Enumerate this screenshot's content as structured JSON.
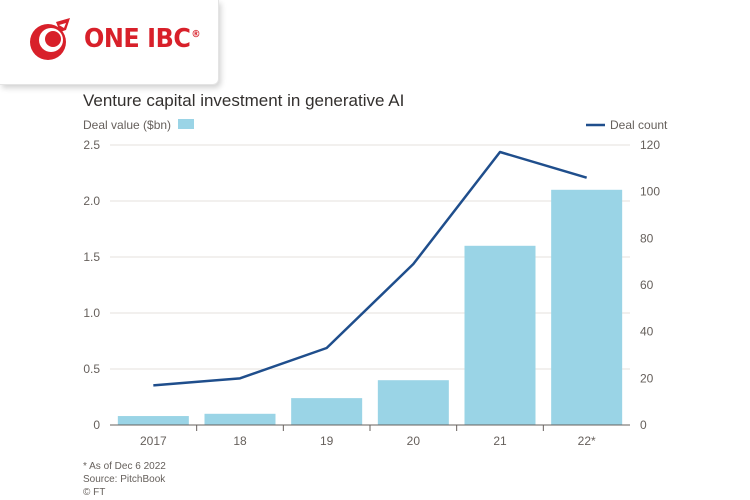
{
  "brand": {
    "name": "ONE IBC",
    "registered_mark": "®",
    "accent_color": "#d8202a"
  },
  "chart_data": {
    "type": "bar",
    "title": "Venture capital investment in generative AI",
    "categories": [
      "2017",
      "18",
      "19",
      "20",
      "21",
      "22*"
    ],
    "series": [
      {
        "name": "Deal value ($bn)",
        "type": "bar",
        "axis": "left",
        "color": "#9ad4e6",
        "values": [
          0.08,
          0.1,
          0.24,
          0.4,
          1.6,
          2.1
        ]
      },
      {
        "name": "Deal count",
        "type": "line",
        "axis": "right",
        "color": "#1f4e8c",
        "values": [
          17,
          20,
          33,
          69,
          117,
          106
        ]
      }
    ],
    "y_left": {
      "ylim": [
        0,
        2.5
      ],
      "ticks": [
        "0",
        "0.5",
        "1.0",
        "1.5",
        "2.0",
        "2.5"
      ]
    },
    "y_right": {
      "ylim": [
        0,
        120
      ],
      "ticks": [
        "0",
        "20",
        "40",
        "60",
        "80",
        "100",
        "120"
      ]
    },
    "grid": true,
    "legend": "top",
    "notes": [
      "* As of Dec 6 2022",
      "Source: PitchBook",
      "© FT"
    ]
  }
}
